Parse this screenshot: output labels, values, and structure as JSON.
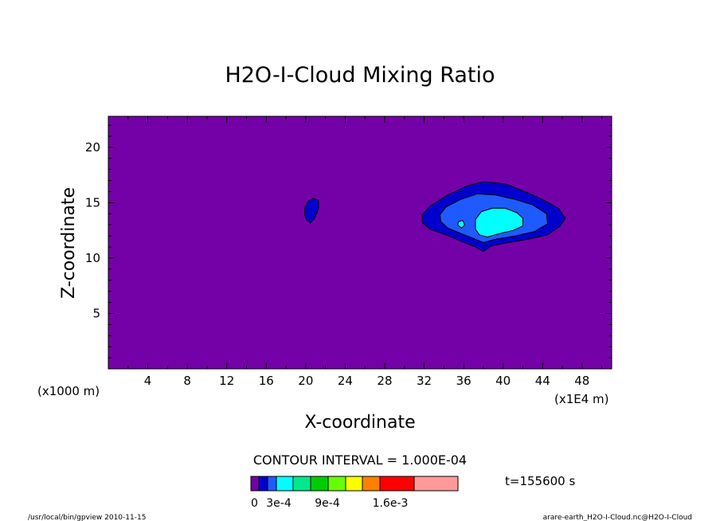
{
  "chart_data": {
    "type": "heatmap",
    "title": "H2O-I-Cloud Mixing Ratio",
    "xlabel": "X-coordinate",
    "ylabel": "Z-coordinate",
    "x_ticks": [
      4,
      8,
      12,
      16,
      20,
      24,
      28,
      32,
      36,
      40,
      44,
      48
    ],
    "y_ticks": [
      5,
      10,
      15,
      20
    ],
    "xlim": [
      0,
      51
    ],
    "ylim": [
      0,
      22.8
    ],
    "y_unit_label": "(x1000 m)",
    "x_unit_label": "(x1E4 m)",
    "contour_interval_text": "CONTOUR INTERVAL = 1.000E-04",
    "time_text": "t=155600 s",
    "background_color": "#7400a8",
    "colorbar": {
      "colors": [
        "#7400a8",
        "#0000cc",
        "#1f5aff",
        "#00ffff",
        "#00e88c",
        "#00cc00",
        "#66ff00",
        "#ffff00",
        "#ff7f00",
        "#ff0000",
        "#ff9999"
      ],
      "tick_labels": [
        "0",
        "3e-4",
        "9e-4",
        "1.6e-3"
      ]
    },
    "contours": [
      {
        "level": "blue",
        "color": "#0000cc",
        "points": [
          [
            20.1,
            13.4
          ],
          [
            20.5,
            13.2
          ],
          [
            20.9,
            13.6
          ],
          [
            21.3,
            14.5
          ],
          [
            21.3,
            15.2
          ],
          [
            20.8,
            15.4
          ],
          [
            20.3,
            15.2
          ],
          [
            19.9,
            14.6
          ],
          [
            19.9,
            13.9
          ]
        ]
      },
      {
        "level": "blue",
        "color": "#0000cc",
        "points": [
          [
            31.8,
            13.2
          ],
          [
            32.6,
            12.6
          ],
          [
            34.2,
            12.1
          ],
          [
            35.8,
            11.5
          ],
          [
            37.2,
            11.0
          ],
          [
            38.0,
            10.6
          ],
          [
            38.8,
            11.1
          ],
          [
            40.5,
            11.4
          ],
          [
            42.5,
            11.7
          ],
          [
            44.5,
            12.1
          ],
          [
            45.8,
            12.9
          ],
          [
            46.3,
            13.6
          ],
          [
            45.6,
            14.5
          ],
          [
            44.2,
            15.2
          ],
          [
            42.5,
            15.9
          ],
          [
            40.2,
            16.7
          ],
          [
            38.0,
            16.9
          ],
          [
            36.3,
            16.5
          ],
          [
            34.4,
            15.7
          ],
          [
            32.6,
            14.7
          ],
          [
            31.8,
            13.9
          ]
        ]
      },
      {
        "level": "mid-blue",
        "color": "#1f5aff",
        "points": [
          [
            33.7,
            13.3
          ],
          [
            34.4,
            12.7
          ],
          [
            35.8,
            12.2
          ],
          [
            37.2,
            11.7
          ],
          [
            38.0,
            11.4
          ],
          [
            39.2,
            11.7
          ],
          [
            41.2,
            12.0
          ],
          [
            43.2,
            12.4
          ],
          [
            44.5,
            13.1
          ],
          [
            44.4,
            14.0
          ],
          [
            43.0,
            14.8
          ],
          [
            41.2,
            15.3
          ],
          [
            39.2,
            15.7
          ],
          [
            37.4,
            15.8
          ],
          [
            35.7,
            15.3
          ],
          [
            34.2,
            14.6
          ],
          [
            33.6,
            13.9
          ]
        ]
      },
      {
        "level": "cyan",
        "color": "#00ffff",
        "points": [
          [
            37.2,
            12.6
          ],
          [
            37.6,
            12.1
          ],
          [
            38.4,
            11.9
          ],
          [
            39.6,
            12.2
          ],
          [
            41.0,
            12.5
          ],
          [
            42.0,
            12.9
          ],
          [
            42.0,
            13.6
          ],
          [
            41.4,
            14.1
          ],
          [
            40.2,
            14.5
          ],
          [
            38.9,
            14.5
          ],
          [
            37.8,
            14.2
          ],
          [
            37.2,
            13.5
          ]
        ]
      },
      {
        "level": "cyan",
        "color": "#00ffff",
        "points": [
          [
            35.4,
            13.0
          ],
          [
            35.8,
            12.7
          ],
          [
            36.1,
            13.0
          ],
          [
            35.9,
            13.4
          ],
          [
            35.5,
            13.3
          ]
        ]
      }
    ],
    "footer_left": "/usr/local/bin/gpview  2010-11-15",
    "footer_right": "arare-earth_H2O-I-Cloud.nc@H2O-I-Cloud"
  }
}
